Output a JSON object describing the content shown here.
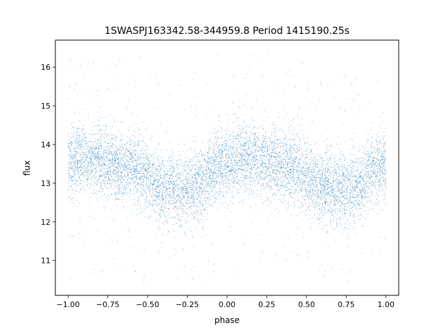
{
  "chart_data": {
    "type": "scatter",
    "title": "1SWASPJ163342.58-344959.8 Period 1415190.25s",
    "xlabel": "phase",
    "ylabel": "flux",
    "xlim": [
      -1.08,
      1.08
    ],
    "ylim": [
      10.1,
      16.7
    ],
    "xticks": [
      -1.0,
      -0.75,
      -0.5,
      -0.25,
      0.0,
      0.25,
      0.5,
      0.75,
      1.0
    ],
    "xtick_labels": [
      "−1.00",
      "−0.75",
      "−0.50",
      "−0.25",
      "0.00",
      "0.25",
      "0.50",
      "0.75",
      "1.00"
    ],
    "yticks": [
      11,
      12,
      13,
      14,
      15,
      16
    ],
    "ytick_labels": [
      "11",
      "12",
      "13",
      "14",
      "15",
      "16"
    ],
    "grid": false,
    "legend": "none",
    "marker_color": "#1f77b4",
    "phase_range": [
      -1.0,
      1.0
    ],
    "folded_curve": {
      "phase": [
        0.0,
        0.05,
        0.1,
        0.15,
        0.2,
        0.25,
        0.3,
        0.35,
        0.4,
        0.45,
        0.5,
        0.55,
        0.6,
        0.65,
        0.7,
        0.75,
        0.8,
        0.85,
        0.9,
        0.95,
        1.0
      ],
      "flux": [
        13.5,
        13.6,
        13.7,
        13.6,
        13.6,
        13.5,
        13.5,
        13.4,
        13.5,
        13.3,
        13.2,
        13.0,
        12.9,
        12.9,
        12.8,
        12.8,
        12.9,
        13.0,
        13.3,
        13.5,
        13.5
      ],
      "scatter_sigma": 0.45
    },
    "point_count": 9000
  }
}
